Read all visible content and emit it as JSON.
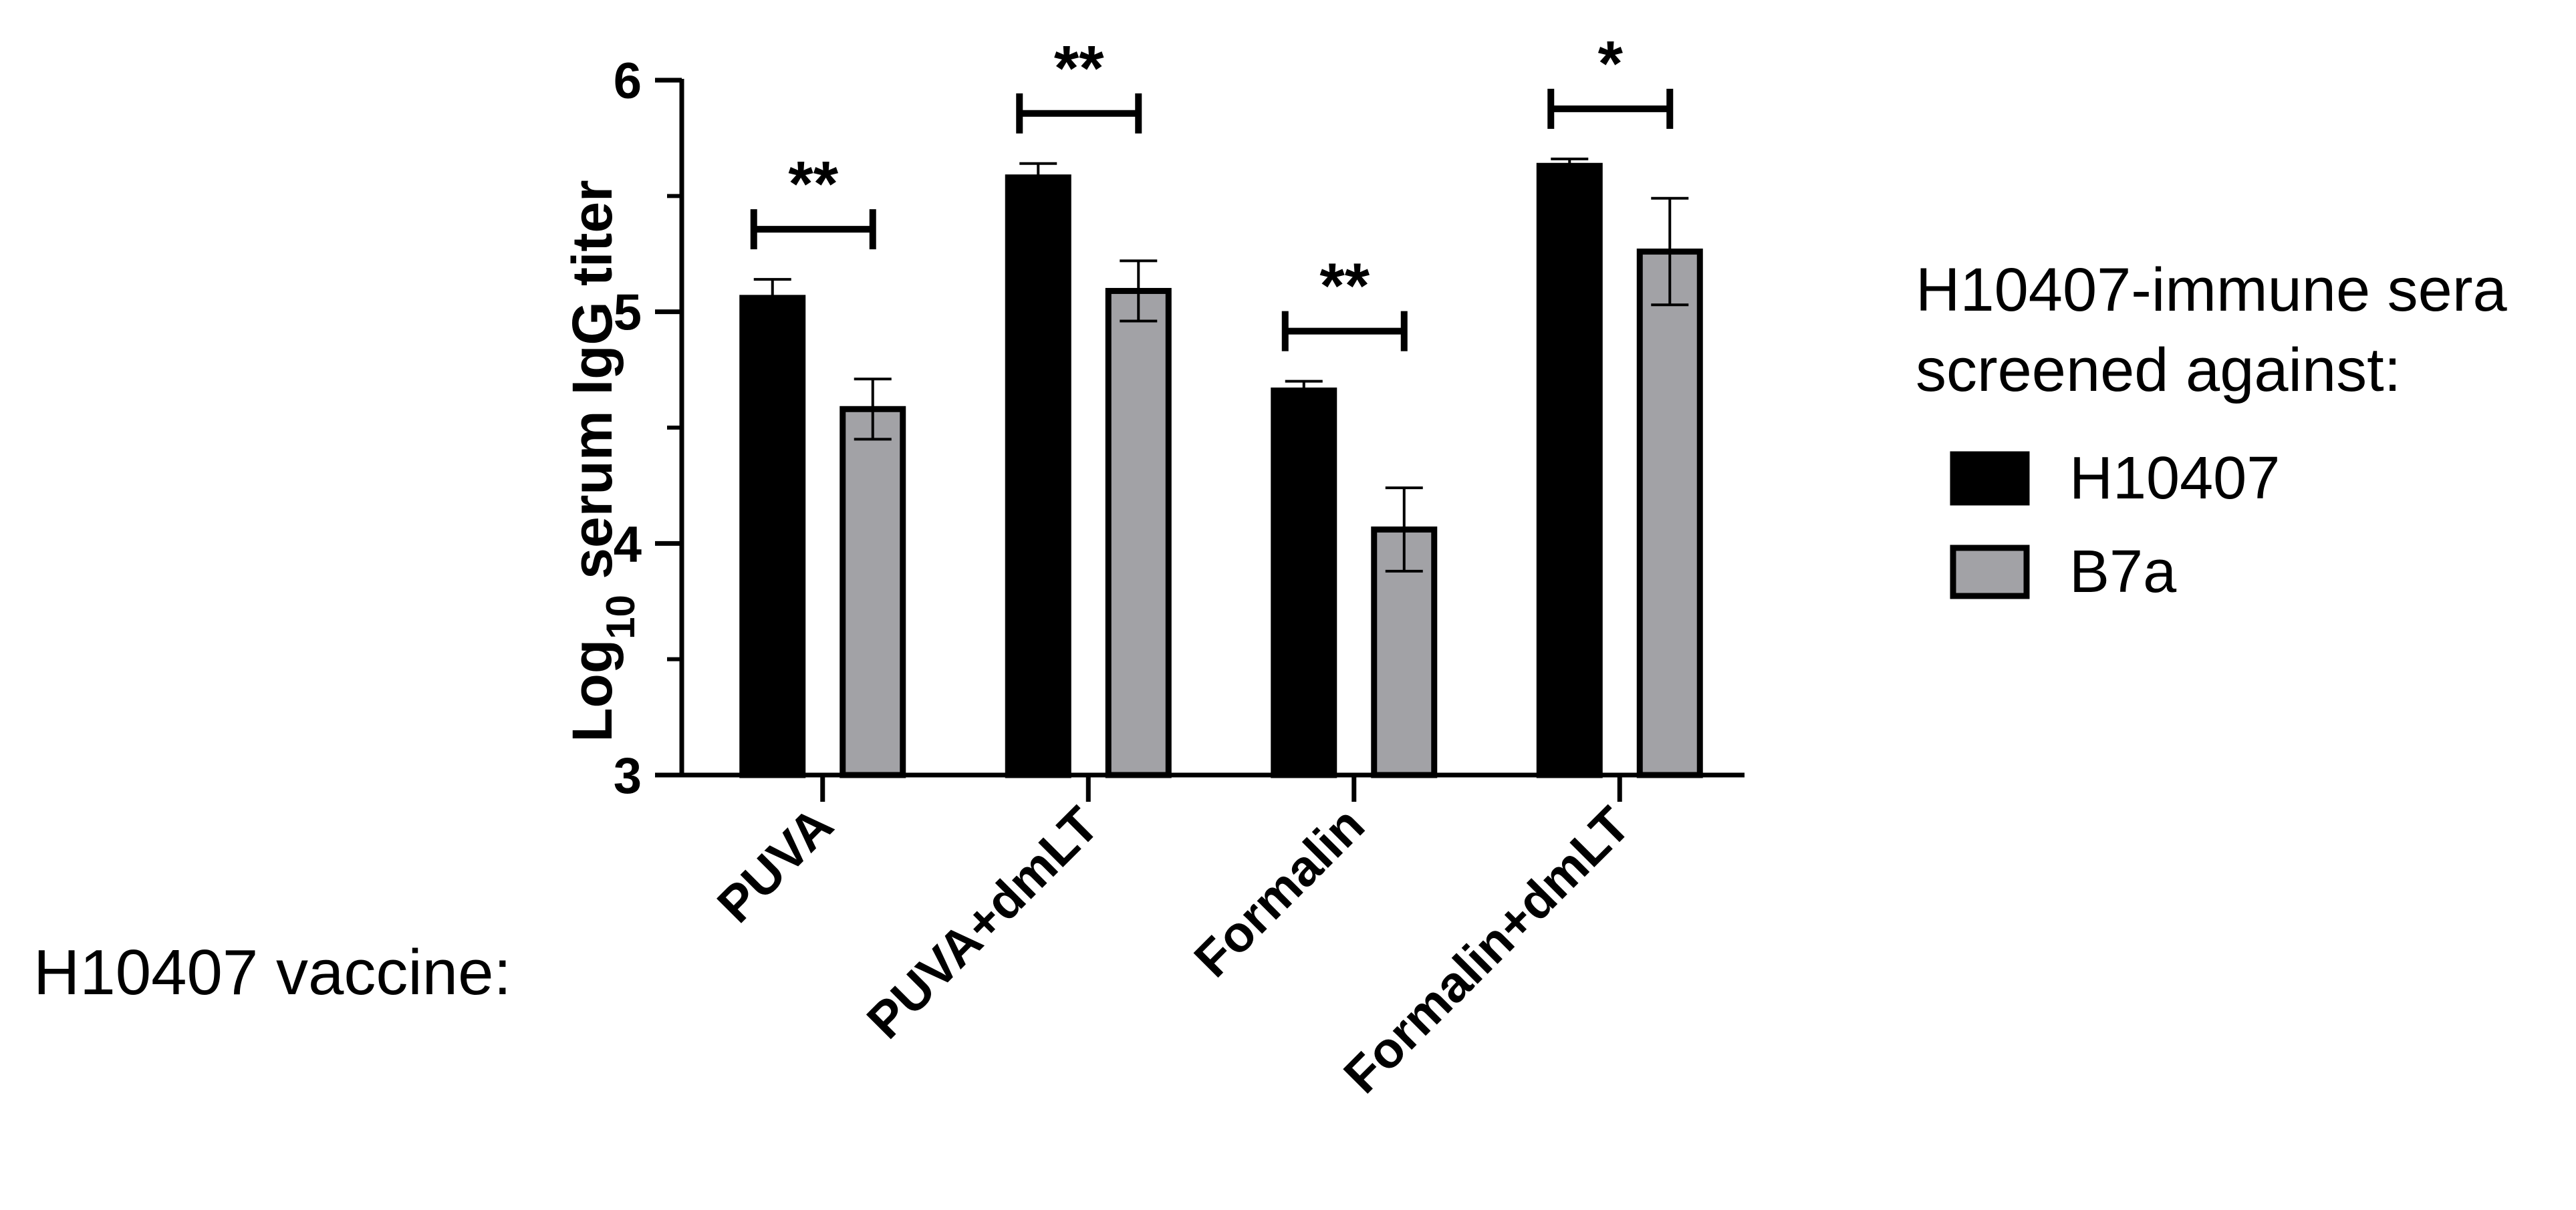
{
  "chart_data": {
    "type": "bar",
    "ylabel": {
      "prefix": "Log",
      "subscript": "10",
      "suffix": " serum IgG titer"
    },
    "x_prefix_label": "H10407 vaccine:",
    "ylim": [
      3,
      6
    ],
    "yticks": [
      3,
      4,
      5,
      6
    ],
    "ytick_labels": [
      "3",
      "4",
      "5",
      "6"
    ],
    "categories": [
      "PUVA",
      "PUVA+dmLT",
      "Formalin",
      "Formalin+dmLT"
    ],
    "series": [
      {
        "name": "H10407",
        "color": "#000000",
        "values": [
          5.06,
          5.58,
          4.66,
          5.63
        ],
        "errors": [
          0.08,
          0.06,
          0.04,
          0.03
        ]
      },
      {
        "name": "B7a",
        "color": "#a2a2a6",
        "values": [
          4.58,
          5.09,
          4.06,
          5.26
        ],
        "errors": [
          0.13,
          0.13,
          0.18,
          0.23
        ]
      }
    ],
    "significance": [
      "**",
      "**",
      "**",
      "*"
    ],
    "legend": {
      "title_lines": [
        "H10407-immune sera",
        "screened against:"
      ],
      "placement": "right"
    },
    "grid": false
  }
}
